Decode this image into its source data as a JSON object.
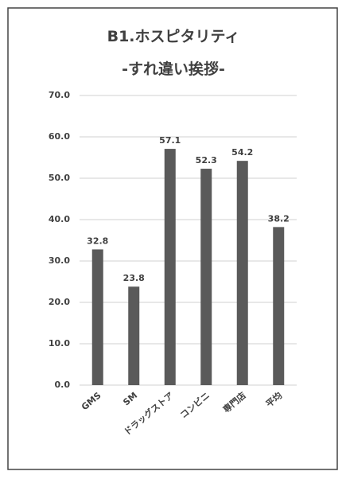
{
  "chart_data": {
    "type": "bar",
    "title": "B1.ホスピタリティ",
    "subtitle": "-すれ違い挨拶-",
    "categories": [
      "GMS",
      "SM",
      "ドラッグストア",
      "コンビニ",
      "専門店",
      "平均"
    ],
    "values": [
      32.8,
      23.8,
      57.1,
      52.3,
      54.2,
      38.2
    ],
    "color": "#5a5a5a",
    "ylim": [
      0,
      70
    ],
    "yticks": [
      {
        "value": 0,
        "label": "0.0"
      },
      {
        "value": 10,
        "label": "10.0"
      },
      {
        "value": 20,
        "label": "20.0"
      },
      {
        "value": 30,
        "label": "30.0"
      },
      {
        "value": 40,
        "label": "40.0"
      },
      {
        "value": 50,
        "label": "50.0"
      },
      {
        "value": 60,
        "label": "60.0"
      },
      {
        "value": 70,
        "label": "70.0"
      }
    ],
    "grid": true
  }
}
